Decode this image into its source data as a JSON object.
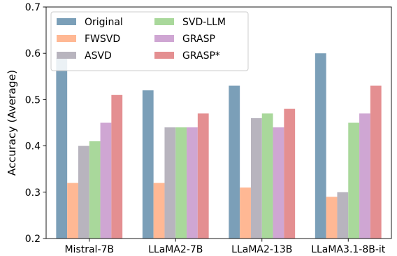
{
  "chart_data": {
    "type": "bar",
    "categories": [
      "Mistral-7B",
      "LLaMA2-7B",
      "LLaMA2-13B",
      "LLaMA3.1-8B-it"
    ],
    "series": [
      {
        "name": "Original",
        "color": "#7b9fb8",
        "values": [
          0.59,
          0.52,
          0.53,
          0.6
        ]
      },
      {
        "name": "FWSVD",
        "color": "#ffb894",
        "values": [
          0.32,
          0.32,
          0.31,
          0.29
        ]
      },
      {
        "name": "ASVD",
        "color": "#b8b4be",
        "values": [
          0.4,
          0.44,
          0.46,
          0.3
        ]
      },
      {
        "name": "SVD-LLM",
        "color": "#a9d89b",
        "values": [
          0.41,
          0.44,
          0.47,
          0.45
        ]
      },
      {
        "name": "GRASP",
        "color": "#cfa6d3",
        "values": [
          0.45,
          0.44,
          0.44,
          0.47
        ]
      },
      {
        "name": "GRASP*",
        "color": "#e48f91",
        "values": [
          0.51,
          0.47,
          0.48,
          0.53
        ]
      }
    ],
    "xlabel": "",
    "ylabel": "Accuracy (Average)",
    "ylim": [
      0.2,
      0.7
    ],
    "yticks": [
      "0.2",
      "0.3",
      "0.4",
      "0.5",
      "0.6",
      "0.7"
    ],
    "legend": {
      "location": "upper-left",
      "columns": 2
    },
    "grid": false
  }
}
